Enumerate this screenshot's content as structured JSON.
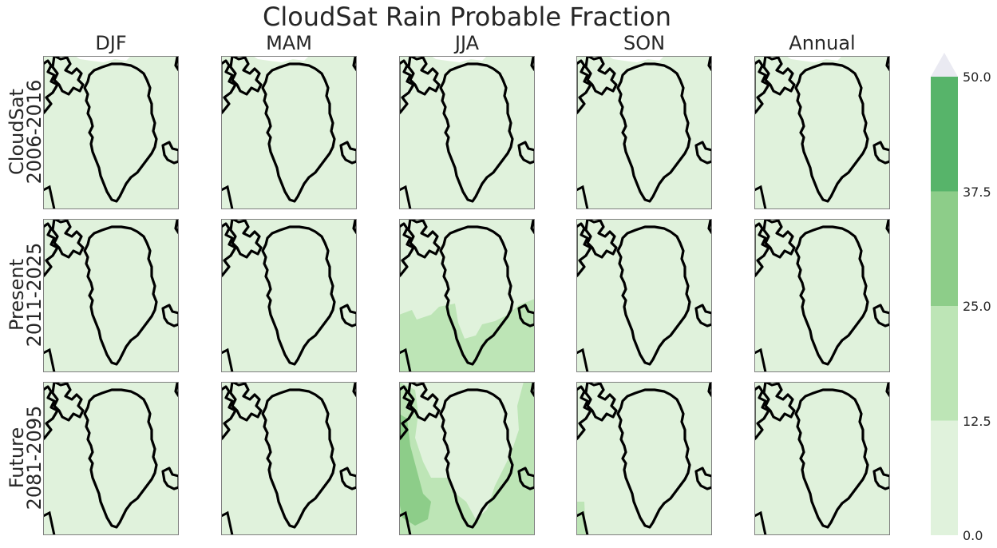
{
  "chart_data": {
    "type": "heatmap",
    "title": "CloudSat Rain Probable Fraction",
    "columns": [
      "DJF",
      "MAM",
      "JJA",
      "SON",
      "Annual"
    ],
    "rows": [
      {
        "line1": "CloudSat",
        "line2": "2006-2016"
      },
      {
        "line1": "Present",
        "line2": "2011-2025"
      },
      {
        "line1": "Future",
        "line2": "2081-2095"
      }
    ],
    "colorbar": {
      "levels": [
        0.0,
        12.5,
        25.0,
        37.5,
        50.0
      ],
      "tick_labels": [
        "0.0",
        "12.5",
        "25.0",
        "37.5",
        "50.0"
      ],
      "colors": [
        "#e0f2dc",
        "#bde5b6",
        "#8dcd89",
        "#57b46a"
      ],
      "extend": "max",
      "over_color": "#eaeaf2"
    },
    "panel_background": "#e0f2dc",
    "coastline_color": "#000000",
    "panels": [
      {
        "row": 0,
        "col": 0,
        "class": "low"
      },
      {
        "row": 0,
        "col": 1,
        "class": "low"
      },
      {
        "row": 0,
        "col": 2,
        "class": "low"
      },
      {
        "row": 0,
        "col": 3,
        "class": "low"
      },
      {
        "row": 0,
        "col": 4,
        "class": "low"
      },
      {
        "row": 1,
        "col": 0,
        "class": "low"
      },
      {
        "row": 1,
        "col": 1,
        "class": "low"
      },
      {
        "row": 1,
        "col": 2,
        "class": "elevated-south"
      },
      {
        "row": 1,
        "col": 3,
        "class": "low"
      },
      {
        "row": 1,
        "col": 4,
        "class": "low"
      },
      {
        "row": 2,
        "col": 0,
        "class": "low"
      },
      {
        "row": 2,
        "col": 1,
        "class": "low"
      },
      {
        "row": 2,
        "col": 2,
        "class": "elevated-wide"
      },
      {
        "row": 2,
        "col": 3,
        "class": "low"
      },
      {
        "row": 2,
        "col": 4,
        "class": "low"
      }
    ]
  }
}
